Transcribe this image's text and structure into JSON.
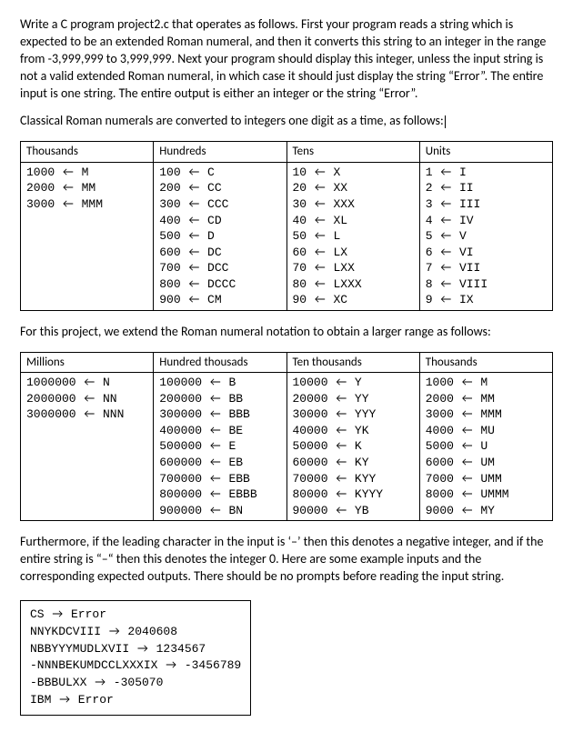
{
  "para1": "Write a C program project2.c that operates as follows. First your program reads a string which is expected to be an extended Roman numeral, and then it converts this string to an integer in the range from -3,999,999 to 3,999,999. Next your program should display this integer, unless the input string is not a valid extended Roman numeral, in which case it should just display the string “Error”. The entire input is one string. The entire output is either an integer or the string “Error”.",
  "para2": "Classical Roman numerals are converted to integers one digit as a time, as follows:",
  "arrow_l": "←",
  "arrow_r": "→",
  "table1": {
    "headers": [
      "Thousands",
      "Hundreds",
      "Tens",
      "Units"
    ],
    "cols": [
      [
        [
          "1000",
          "M"
        ],
        [
          "2000",
          "MM"
        ],
        [
          "3000",
          "MMM"
        ]
      ],
      [
        [
          "100",
          "C"
        ],
        [
          "200",
          "CC"
        ],
        [
          "300",
          "CCC"
        ],
        [
          "400",
          "CD"
        ],
        [
          "500",
          "D"
        ],
        [
          "600",
          "DC"
        ],
        [
          "700",
          "DCC"
        ],
        [
          "800",
          "DCCC"
        ],
        [
          "900",
          "CM"
        ]
      ],
      [
        [
          "10",
          "X"
        ],
        [
          "20",
          "XX"
        ],
        [
          "30",
          "XXX"
        ],
        [
          "40",
          "XL"
        ],
        [
          "50",
          "L"
        ],
        [
          "60",
          "LX"
        ],
        [
          "70",
          "LXX"
        ],
        [
          "80",
          "LXXX"
        ],
        [
          "90",
          "XC"
        ]
      ],
      [
        [
          "1",
          "I"
        ],
        [
          "2",
          "II"
        ],
        [
          "3",
          "III"
        ],
        [
          "4",
          "IV"
        ],
        [
          "5",
          "V"
        ],
        [
          "6",
          "VI"
        ],
        [
          "7",
          "VII"
        ],
        [
          "8",
          "VIII"
        ],
        [
          "9",
          "IX"
        ]
      ]
    ]
  },
  "para3": "For this project, we extend the Roman numeral notation to obtain a larger range as follows:",
  "table2": {
    "headers": [
      "Millions",
      "Hundred thousads",
      "Ten thousands",
      "Thousands"
    ],
    "cols": [
      [
        [
          "1000000",
          "N"
        ],
        [
          "2000000",
          "NN"
        ],
        [
          "3000000",
          "NNN"
        ]
      ],
      [
        [
          "100000",
          "B"
        ],
        [
          "200000",
          "BB"
        ],
        [
          "300000",
          "BBB"
        ],
        [
          "400000",
          "BE"
        ],
        [
          "500000",
          "E"
        ],
        [
          "600000",
          "EB"
        ],
        [
          "700000",
          "EBB"
        ],
        [
          "800000",
          "EBBB"
        ],
        [
          "900000",
          "BN"
        ]
      ],
      [
        [
          "10000",
          "Y"
        ],
        [
          "20000",
          "YY"
        ],
        [
          "30000",
          "YYY"
        ],
        [
          "40000",
          "YK"
        ],
        [
          "50000",
          "K"
        ],
        [
          "60000",
          "KY"
        ],
        [
          "70000",
          "KYY"
        ],
        [
          "80000",
          "KYYY"
        ],
        [
          "90000",
          "YB"
        ]
      ],
      [
        [
          "1000",
          "M"
        ],
        [
          "2000",
          "MM"
        ],
        [
          "3000",
          "MMM"
        ],
        [
          "4000",
          "MU"
        ],
        [
          "5000",
          "U"
        ],
        [
          "6000",
          "UM"
        ],
        [
          "7000",
          "UMM"
        ],
        [
          "8000",
          "UMMM"
        ],
        [
          "9000",
          "MY"
        ]
      ]
    ]
  },
  "para4": "Furthermore, if the leading character in the input is ‘–’ then this denotes a negative integer, and if the entire string is “–“ then this denotes the integer 0. Here are some example inputs and the corresponding expected outputs. There should be no prompts before reading the input string.",
  "examples": [
    [
      "CS",
      "Error"
    ],
    [
      "NNYKDCVIII",
      "2040608"
    ],
    [
      "NBBYYYMUDLXVII",
      "1234567"
    ],
    [
      "-NNNBEKUMDCCLXXXIX",
      "-3456789"
    ],
    [
      "-BBBULXX",
      "-305070"
    ],
    [
      "IBM",
      "Error"
    ]
  ]
}
